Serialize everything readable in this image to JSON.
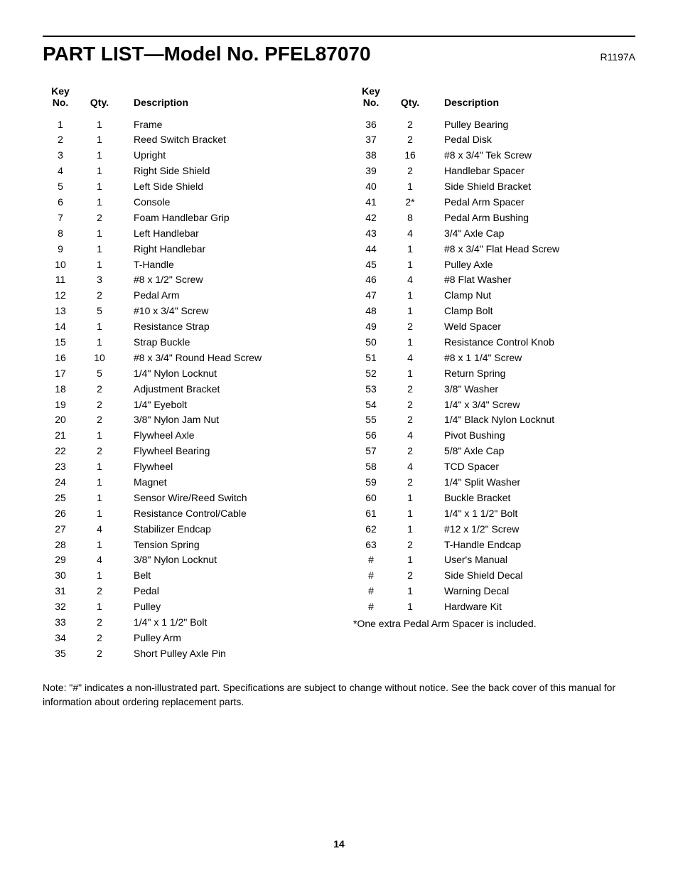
{
  "title": "PART LIST—Model No. PFEL87070",
  "revision": "R1197A",
  "headers": {
    "key": "Key No.",
    "qty": "Qty.",
    "desc": "Description"
  },
  "left": [
    {
      "key": "1",
      "qty": "1",
      "desc": "Frame"
    },
    {
      "key": "2",
      "qty": "1",
      "desc": "Reed Switch Bracket"
    },
    {
      "key": "3",
      "qty": "1",
      "desc": "Upright"
    },
    {
      "key": "4",
      "qty": "1",
      "desc": "Right Side Shield"
    },
    {
      "key": "5",
      "qty": "1",
      "desc": "Left Side Shield"
    },
    {
      "key": "6",
      "qty": "1",
      "desc": "Console"
    },
    {
      "key": "7",
      "qty": "2",
      "desc": "Foam Handlebar Grip"
    },
    {
      "key": "8",
      "qty": "1",
      "desc": "Left Handlebar"
    },
    {
      "key": "9",
      "qty": "1",
      "desc": "Right Handlebar"
    },
    {
      "key": "10",
      "qty": "1",
      "desc": "T-Handle"
    },
    {
      "key": "11",
      "qty": "3",
      "desc": "#8 x 1/2\" Screw"
    },
    {
      "key": "12",
      "qty": "2",
      "desc": "Pedal Arm"
    },
    {
      "key": "13",
      "qty": "5",
      "desc": "#10 x 3/4\" Screw"
    },
    {
      "key": "14",
      "qty": "1",
      "desc": "Resistance Strap"
    },
    {
      "key": "15",
      "qty": "1",
      "desc": "Strap Buckle"
    },
    {
      "key": "16",
      "qty": "10",
      "desc": "#8 x 3/4\" Round Head Screw"
    },
    {
      "key": "17",
      "qty": "5",
      "desc": "1/4\" Nylon Locknut"
    },
    {
      "key": "18",
      "qty": "2",
      "desc": "Adjustment Bracket"
    },
    {
      "key": "19",
      "qty": "2",
      "desc": "1/4\" Eyebolt"
    },
    {
      "key": "20",
      "qty": "2",
      "desc": "3/8\" Nylon Jam Nut"
    },
    {
      "key": "21",
      "qty": "1",
      "desc": "Flywheel Axle"
    },
    {
      "key": "22",
      "qty": "2",
      "desc": "Flywheel Bearing"
    },
    {
      "key": "23",
      "qty": "1",
      "desc": "Flywheel"
    },
    {
      "key": "24",
      "qty": "1",
      "desc": "Magnet"
    },
    {
      "key": "25",
      "qty": "1",
      "desc": "Sensor Wire/Reed Switch"
    },
    {
      "key": "26",
      "qty": "1",
      "desc": "Resistance Control/Cable"
    },
    {
      "key": "27",
      "qty": "4",
      "desc": "Stabilizer Endcap"
    },
    {
      "key": "28",
      "qty": "1",
      "desc": "Tension Spring"
    },
    {
      "key": "29",
      "qty": "4",
      "desc": "3/8\" Nylon Locknut"
    },
    {
      "key": "30",
      "qty": "1",
      "desc": "Belt"
    },
    {
      "key": "31",
      "qty": "2",
      "desc": "Pedal"
    },
    {
      "key": "32",
      "qty": "1",
      "desc": "Pulley"
    },
    {
      "key": "33",
      "qty": "2",
      "desc": "1/4\" x 1 1/2\" Bolt"
    },
    {
      "key": "34",
      "qty": "2",
      "desc": "Pulley Arm"
    },
    {
      "key": "35",
      "qty": "2",
      "desc": "Short Pulley Axle Pin"
    }
  ],
  "right": [
    {
      "key": "36",
      "qty": "2",
      "desc": "Pulley Bearing"
    },
    {
      "key": "37",
      "qty": "2",
      "desc": "Pedal Disk"
    },
    {
      "key": "38",
      "qty": "16",
      "desc": "#8 x 3/4\" Tek Screw"
    },
    {
      "key": "39",
      "qty": "2",
      "desc": "Handlebar Spacer"
    },
    {
      "key": "40",
      "qty": "1",
      "desc": "Side Shield Bracket"
    },
    {
      "key": "41",
      "qty": "2*",
      "desc": "Pedal Arm Spacer"
    },
    {
      "key": "42",
      "qty": "8",
      "desc": "Pedal Arm Bushing"
    },
    {
      "key": "43",
      "qty": "4",
      "desc": "3/4\" Axle Cap"
    },
    {
      "key": "44",
      "qty": "1",
      "desc": "#8 x 3/4\" Flat Head Screw"
    },
    {
      "key": "45",
      "qty": "1",
      "desc": "Pulley Axle"
    },
    {
      "key": "46",
      "qty": "4",
      "desc": "#8 Flat Washer"
    },
    {
      "key": "47",
      "qty": "1",
      "desc": "Clamp Nut"
    },
    {
      "key": "48",
      "qty": "1",
      "desc": "Clamp Bolt"
    },
    {
      "key": "49",
      "qty": "2",
      "desc": "Weld Spacer"
    },
    {
      "key": "50",
      "qty": "1",
      "desc": "Resistance Control Knob"
    },
    {
      "key": "51",
      "qty": "4",
      "desc": "#8 x 1 1/4\" Screw"
    },
    {
      "key": "52",
      "qty": "1",
      "desc": "Return Spring"
    },
    {
      "key": "53",
      "qty": "2",
      "desc": "3/8\" Washer"
    },
    {
      "key": "54",
      "qty": "2",
      "desc": "1/4\" x 3/4\" Screw"
    },
    {
      "key": "55",
      "qty": "2",
      "desc": "1/4\" Black Nylon Locknut"
    },
    {
      "key": "56",
      "qty": "4",
      "desc": "Pivot Bushing"
    },
    {
      "key": "57",
      "qty": "2",
      "desc": "5/8\" Axle Cap"
    },
    {
      "key": "58",
      "qty": "4",
      "desc": "TCD Spacer"
    },
    {
      "key": "59",
      "qty": "2",
      "desc": "1/4\" Split Washer"
    },
    {
      "key": "60",
      "qty": "1",
      "desc": "Buckle Bracket"
    },
    {
      "key": "61",
      "qty": "1",
      "desc": "1/4\" x 1 1/2\" Bolt"
    },
    {
      "key": "62",
      "qty": "1",
      "desc": "#12 x 1/2\" Screw"
    },
    {
      "key": "63",
      "qty": "2",
      "desc": "T-Handle Endcap"
    },
    {
      "key": "#",
      "qty": "1",
      "desc": "User's Manual"
    },
    {
      "key": "#",
      "qty": "2",
      "desc": "Side Shield Decal"
    },
    {
      "key": "#",
      "qty": "1",
      "desc": "Warning Decal"
    },
    {
      "key": "#",
      "qty": "1",
      "desc": "Hardware Kit"
    }
  ],
  "footnote": "*One extra Pedal Arm Spacer is included.",
  "note": "Note: \"#\" indicates a non-illustrated part. Specifications are subject to change without notice. See the back cover of this manual for information about ordering replacement parts.",
  "page": "14"
}
